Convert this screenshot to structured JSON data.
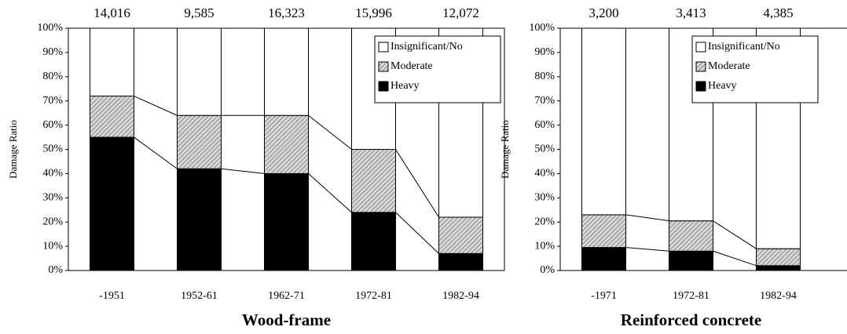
{
  "chart_data": [
    {
      "type": "stacked_bar",
      "title": "Wood-frame",
      "ylabel": "Damage Ratio",
      "categories": [
        "-1951",
        "1952-61",
        "1962-71",
        "1972-81",
        "1982-94"
      ],
      "totals": [
        {
          "value": 14016,
          "label": "14,016"
        },
        {
          "value": 9585,
          "label": "9,585"
        },
        {
          "value": 16323,
          "label": "16,323"
        },
        {
          "value": 15996,
          "label": "15,996"
        },
        {
          "value": 12072,
          "label": "12,072"
        }
      ],
      "series": [
        {
          "name": "Heavy",
          "color": "#000000",
          "values": [
            55,
            42,
            40,
            24,
            7
          ]
        },
        {
          "name": "Moderate",
          "color": "hatch",
          "values": [
            17,
            22,
            24,
            26,
            15
          ]
        },
        {
          "name": "Insignificant/No",
          "color": "#ffffff",
          "values": [
            28,
            36,
            36,
            50,
            78
          ]
        }
      ],
      "ylim": [
        0,
        100
      ],
      "yticks": [
        {
          "value": 0,
          "label": "0%"
        },
        {
          "value": 10,
          "label": "10%"
        },
        {
          "value": 20,
          "label": "20%"
        },
        {
          "value": 30,
          "label": "30%"
        },
        {
          "value": 40,
          "label": "40%"
        },
        {
          "value": 50,
          "label": "50%"
        },
        {
          "value": 60,
          "label": "60%"
        },
        {
          "value": 70,
          "label": "70%"
        },
        {
          "value": 80,
          "label": "80%"
        },
        {
          "value": 90,
          "label": "90%"
        },
        {
          "value": 100,
          "label": "100%"
        }
      ],
      "legend": "upper right"
    },
    {
      "type": "stacked_bar",
      "title": "Reinforced concrete",
      "ylabel": "Damage Ratio",
      "categories": [
        "-1971",
        "1972-81",
        "1982-94"
      ],
      "totals": [
        {
          "value": 3200,
          "label": "3,200"
        },
        {
          "value": 3413,
          "label": "3,413"
        },
        {
          "value": 4385,
          "label": "4,385"
        }
      ],
      "series": [
        {
          "name": "Heavy",
          "color": "#000000",
          "values": [
            9.5,
            8,
            2
          ]
        },
        {
          "name": "Moderate",
          "color": "hatch",
          "values": [
            13.5,
            12.5,
            7
          ]
        },
        {
          "name": "Insignificant/No",
          "color": "#ffffff",
          "values": [
            77,
            79.5,
            91
          ]
        }
      ],
      "ylim": [
        0,
        100
      ],
      "yticks": [
        {
          "value": 0,
          "label": "0%"
        },
        {
          "value": 10,
          "label": "10%"
        },
        {
          "value": 20,
          "label": "20%"
        },
        {
          "value": 30,
          "label": "30%"
        },
        {
          "value": 40,
          "label": "40%"
        },
        {
          "value": 50,
          "label": "50%"
        },
        {
          "value": 60,
          "label": "60%"
        },
        {
          "value": 70,
          "label": "70%"
        },
        {
          "value": 80,
          "label": "80%"
        },
        {
          "value": 90,
          "label": "90%"
        },
        {
          "value": 100,
          "label": "100%"
        }
      ],
      "legend": "upper right"
    }
  ]
}
